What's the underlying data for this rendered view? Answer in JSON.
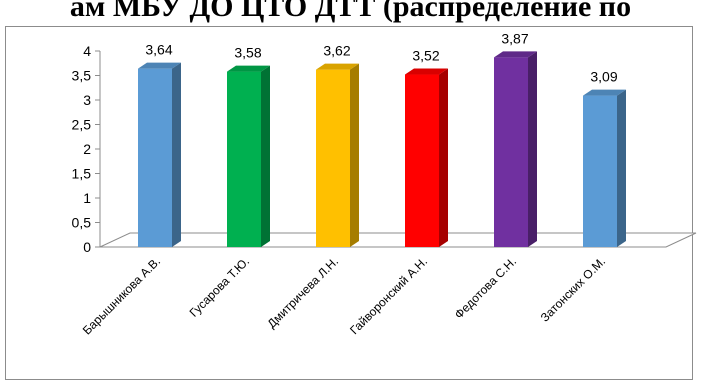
{
  "header": {
    "title_fragment": "ам МБУ ДО ЦТО ДТТ (распределение по"
  },
  "chart_data": {
    "type": "bar",
    "title": "",
    "xlabel": "",
    "ylabel": "",
    "ylim": [
      0,
      4
    ],
    "yticks": [
      0,
      0.5,
      1,
      1.5,
      2,
      2.5,
      3,
      3.5,
      4
    ],
    "ytick_labels": [
      "0",
      "0,5",
      "1",
      "1,5",
      "2",
      "2,5",
      "3",
      "3,5",
      "4"
    ],
    "categories": [
      "Барышникова А.В.",
      "Гусарова Т.Ю.",
      "Дмитричева Л.Н.",
      "Гайворонский А.Н.",
      "Федотова С.Н.",
      "Затонских О.М."
    ],
    "values": [
      3.64,
      3.58,
      3.62,
      3.52,
      3.87,
      3.09
    ],
    "value_labels": [
      "3,64",
      "3,58",
      "3,62",
      "3,52",
      "3,87",
      "3,09"
    ],
    "colors": [
      "#5b9bd5",
      "#00b050",
      "#ffc000",
      "#ff0000",
      "#7030a0",
      "#5b9bd5"
    ],
    "style": "3d-column",
    "grid": false,
    "legend": "none"
  }
}
